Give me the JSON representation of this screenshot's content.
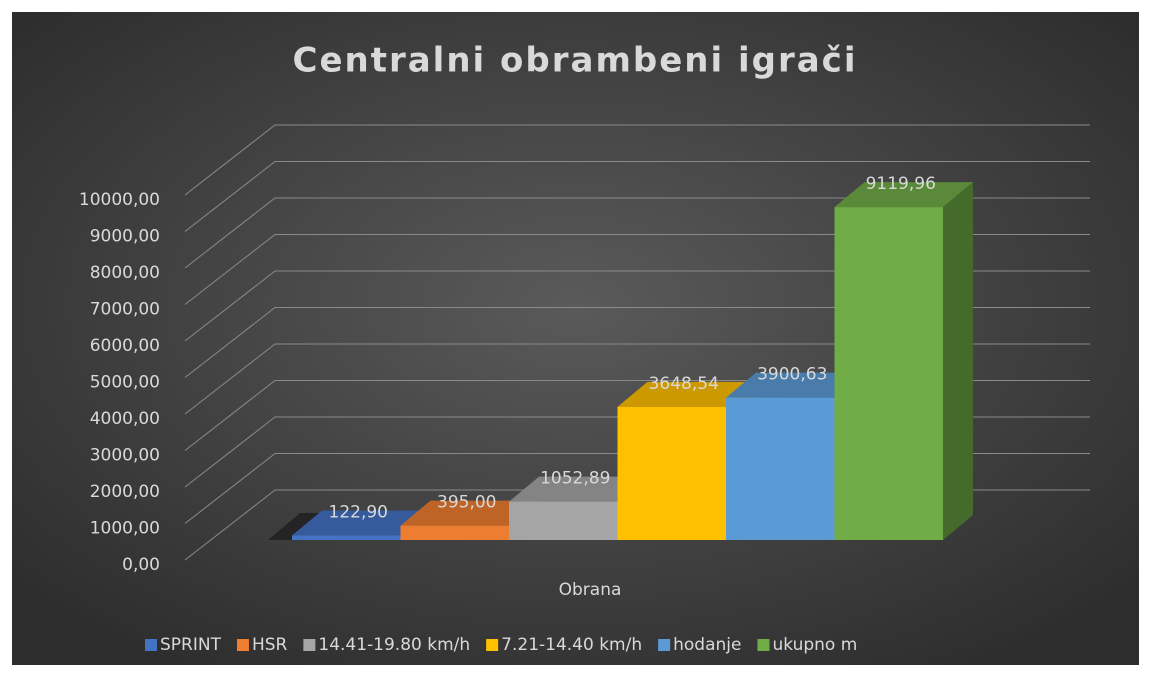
{
  "chart_data": {
    "type": "bar3d",
    "title": "Centralni obrambeni igrači",
    "categories": [
      "Obrana"
    ],
    "series": [
      {
        "name": "SPRINT",
        "color": "#4472c4",
        "values": [
          122.9
        ],
        "value_labels": [
          "122,90"
        ]
      },
      {
        "name": "HSR",
        "color": "#ed7d31",
        "values": [
          395.0
        ],
        "value_labels": [
          "395,00"
        ]
      },
      {
        "name": "14.41-19.80 km/h",
        "color": "#a5a5a5",
        "values": [
          1052.89
        ],
        "value_labels": [
          "1052,89"
        ]
      },
      {
        "name": "7.21-14.40 km/h",
        "color": "#ffc000",
        "values": [
          3648.54
        ],
        "value_labels": [
          "3648,54"
        ]
      },
      {
        "name": "hodanje",
        "color": "#5b9bd5",
        "values": [
          3900.63
        ],
        "value_labels": [
          "3900,63"
        ]
      },
      {
        "name": "ukupno m",
        "color": "#70ad47",
        "values": [
          9119.96
        ],
        "value_labels": [
          "9119,96"
        ]
      }
    ],
    "ylim": [
      0,
      10000
    ],
    "yticks": [
      {
        "value": 0,
        "label": "0,00"
      },
      {
        "value": 1000,
        "label": "1000,00"
      },
      {
        "value": 2000,
        "label": "2000,00"
      },
      {
        "value": 3000,
        "label": "3000,00"
      },
      {
        "value": 4000,
        "label": "4000,00"
      },
      {
        "value": 5000,
        "label": "5000,00"
      },
      {
        "value": 6000,
        "label": "6000,00"
      },
      {
        "value": 7000,
        "label": "7000,00"
      },
      {
        "value": 8000,
        "label": "8000,00"
      },
      {
        "value": 9000,
        "label": "9000,00"
      },
      {
        "value": 10000,
        "label": "10000,00"
      }
    ],
    "grid": true,
    "legend": "bottom"
  }
}
